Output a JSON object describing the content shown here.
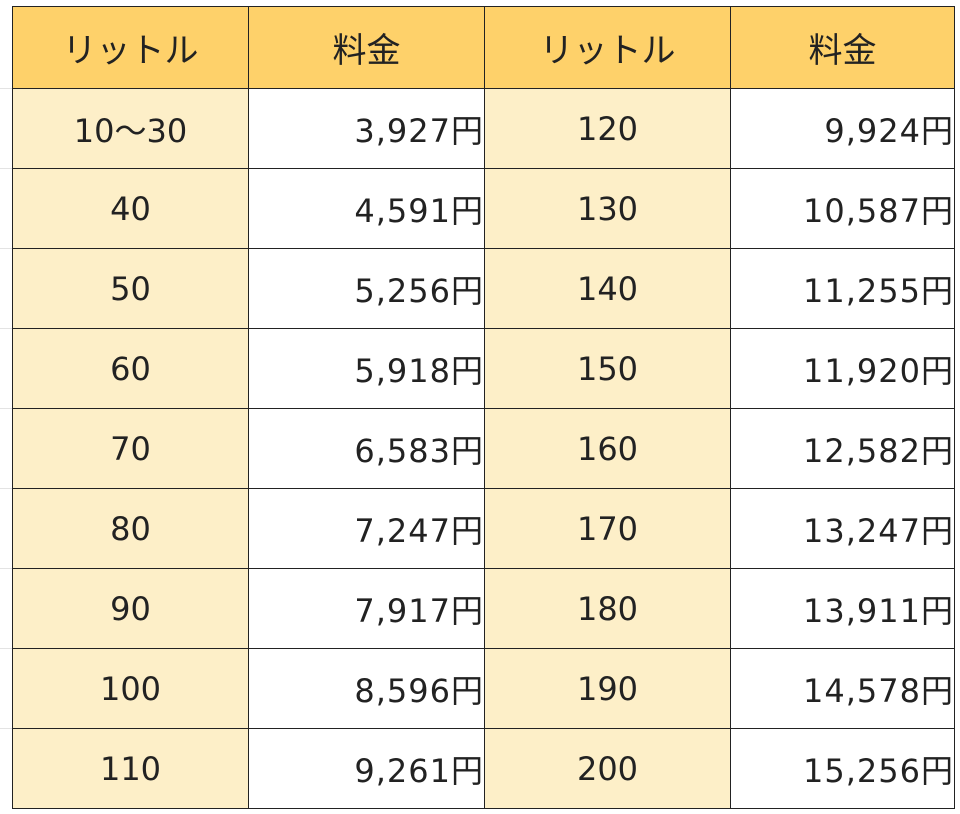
{
  "headers": [
    "リットル",
    "料金",
    "リットル",
    "料金"
  ],
  "rows": [
    {
      "l1": "10～30",
      "p1": "3,927円",
      "l2": "120",
      "p2": "9,924円"
    },
    {
      "l1": "40",
      "p1": "4,591円",
      "l2": "130",
      "p2": "10,587円"
    },
    {
      "l1": "50",
      "p1": "5,256円",
      "l2": "140",
      "p2": "11,255円"
    },
    {
      "l1": "60",
      "p1": "5,918円",
      "l2": "150",
      "p2": "11,920円"
    },
    {
      "l1": "70",
      "p1": "6,583円",
      "l2": "160",
      "p2": "12,582円"
    },
    {
      "l1": "80",
      "p1": "7,247円",
      "l2": "170",
      "p2": "13,247円"
    },
    {
      "l1": "90",
      "p1": "7,917円",
      "l2": "180",
      "p2": "13,911円"
    },
    {
      "l1": "100",
      "p1": "8,596円",
      "l2": "190",
      "p2": "14,578円"
    },
    {
      "l1": "110",
      "p1": "9,261円",
      "l2": "200",
      "p2": "15,256円"
    }
  ],
  "colors": {
    "header_bg": "#fed16a",
    "liter_bg": "#fdefc8",
    "price_bg": "#ffffff",
    "border": "#222222"
  }
}
